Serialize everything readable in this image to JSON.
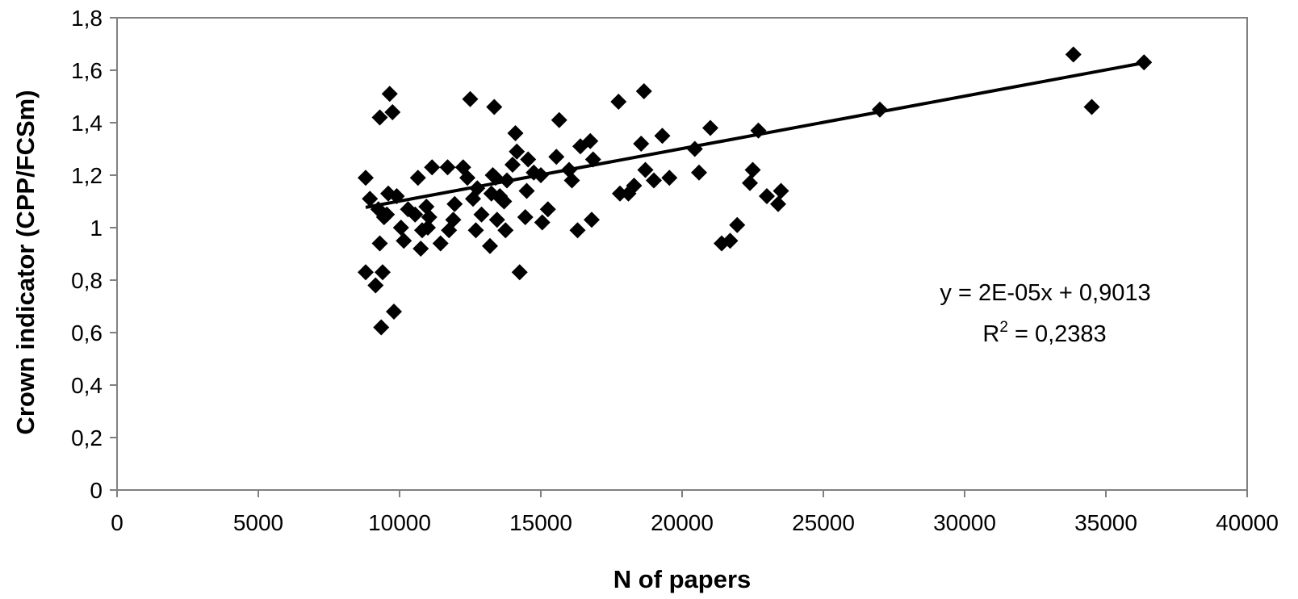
{
  "chart_data": {
    "type": "scatter",
    "title": "",
    "xlabel": "N of papers",
    "ylabel": "Crown indicator (CPP/FCSm)",
    "xlim": [
      0,
      40000
    ],
    "ylim": [
      0,
      1.8
    ],
    "x_ticks": [
      0,
      5000,
      10000,
      15000,
      20000,
      25000,
      30000,
      35000,
      40000
    ],
    "x_tick_labels": [
      "0",
      "5000",
      "10000",
      "15000",
      "20000",
      "25000",
      "30000",
      "35000",
      "40000"
    ],
    "y_ticks": [
      0,
      0.2,
      0.4,
      0.6,
      0.8,
      1.0,
      1.2,
      1.4,
      1.6,
      1.8
    ],
    "y_tick_labels": [
      "0",
      "0,2",
      "0,4",
      "0,6",
      "0,8",
      "1",
      "1,2",
      "1,4",
      "1,6",
      "1,8"
    ],
    "grid": false,
    "legend": "none",
    "marker": "diamond",
    "marker_color": "#000000",
    "line_color": "#000000",
    "trendline": {
      "slope": 2e-05,
      "intercept": 0.9013,
      "x_range": [
        8800,
        36400
      ]
    },
    "equation": "y = 2E-05x + 0,9013",
    "r2_prefix": "R",
    "r2_sup": "2",
    "r2_value": " = 0,2383",
    "points": [
      [
        8800,
        1.19
      ],
      [
        8800,
        0.83
      ],
      [
        8950,
        1.11
      ],
      [
        9150,
        0.78
      ],
      [
        9250,
        1.07
      ],
      [
        9300,
        1.42
      ],
      [
        9300,
        0.94
      ],
      [
        9350,
        0.62
      ],
      [
        9400,
        0.83
      ],
      [
        9450,
        1.04
      ],
      [
        9550,
        1.05
      ],
      [
        9600,
        1.13
      ],
      [
        9650,
        1.51
      ],
      [
        9750,
        1.44
      ],
      [
        9800,
        0.68
      ],
      [
        9900,
        1.12
      ],
      [
        10050,
        1.0
      ],
      [
        10150,
        0.95
      ],
      [
        10300,
        1.07
      ],
      [
        10550,
        1.05
      ],
      [
        10650,
        1.19
      ],
      [
        10750,
        0.92
      ],
      [
        10800,
        0.99
      ],
      [
        10950,
        1.08
      ],
      [
        11000,
        1.0
      ],
      [
        11050,
        1.04
      ],
      [
        11150,
        1.23
      ],
      [
        11450,
        0.94
      ],
      [
        11700,
        1.23
      ],
      [
        11750,
        0.99
      ],
      [
        11900,
        1.03
      ],
      [
        11950,
        1.09
      ],
      [
        12250,
        1.23
      ],
      [
        12400,
        1.19
      ],
      [
        12500,
        1.49
      ],
      [
        12600,
        1.11
      ],
      [
        12700,
        0.99
      ],
      [
        12750,
        1.15
      ],
      [
        12900,
        1.05
      ],
      [
        13200,
        0.93
      ],
      [
        13250,
        1.13
      ],
      [
        13300,
        1.2
      ],
      [
        13350,
        1.46
      ],
      [
        13400,
        1.19
      ],
      [
        13450,
        1.03
      ],
      [
        13550,
        1.12
      ],
      [
        13600,
        1.11
      ],
      [
        13700,
        1.1
      ],
      [
        13750,
        0.99
      ],
      [
        13800,
        1.18
      ],
      [
        14000,
        1.24
      ],
      [
        14100,
        1.36
      ],
      [
        14150,
        1.29
      ],
      [
        14250,
        0.83
      ],
      [
        14450,
        1.04
      ],
      [
        14500,
        1.14
      ],
      [
        14550,
        1.26
      ],
      [
        14750,
        1.21
      ],
      [
        15000,
        1.2
      ],
      [
        15050,
        1.02
      ],
      [
        15250,
        1.07
      ],
      [
        15550,
        1.27
      ],
      [
        15650,
        1.41
      ],
      [
        16000,
        1.22
      ],
      [
        16100,
        1.18
      ],
      [
        16300,
        0.99
      ],
      [
        16400,
        1.31
      ],
      [
        16750,
        1.33
      ],
      [
        16800,
        1.03
      ],
      [
        16850,
        1.26
      ],
      [
        17750,
        1.48
      ],
      [
        17800,
        1.13
      ],
      [
        18100,
        1.13
      ],
      [
        18300,
        1.16
      ],
      [
        18550,
        1.32
      ],
      [
        18650,
        1.52
      ],
      [
        18700,
        1.22
      ],
      [
        19000,
        1.18
      ],
      [
        19300,
        1.35
      ],
      [
        19550,
        1.19
      ],
      [
        20450,
        1.3
      ],
      [
        20600,
        1.21
      ],
      [
        21000,
        1.38
      ],
      [
        21400,
        0.94
      ],
      [
        21700,
        0.95
      ],
      [
        21950,
        1.01
      ],
      [
        22400,
        1.17
      ],
      [
        22500,
        1.22
      ],
      [
        22700,
        1.37
      ],
      [
        23000,
        1.12
      ],
      [
        23400,
        1.09
      ],
      [
        23500,
        1.14
      ],
      [
        27000,
        1.45
      ],
      [
        33850,
        1.66
      ],
      [
        34500,
        1.46
      ],
      [
        36350,
        1.63
      ]
    ]
  }
}
